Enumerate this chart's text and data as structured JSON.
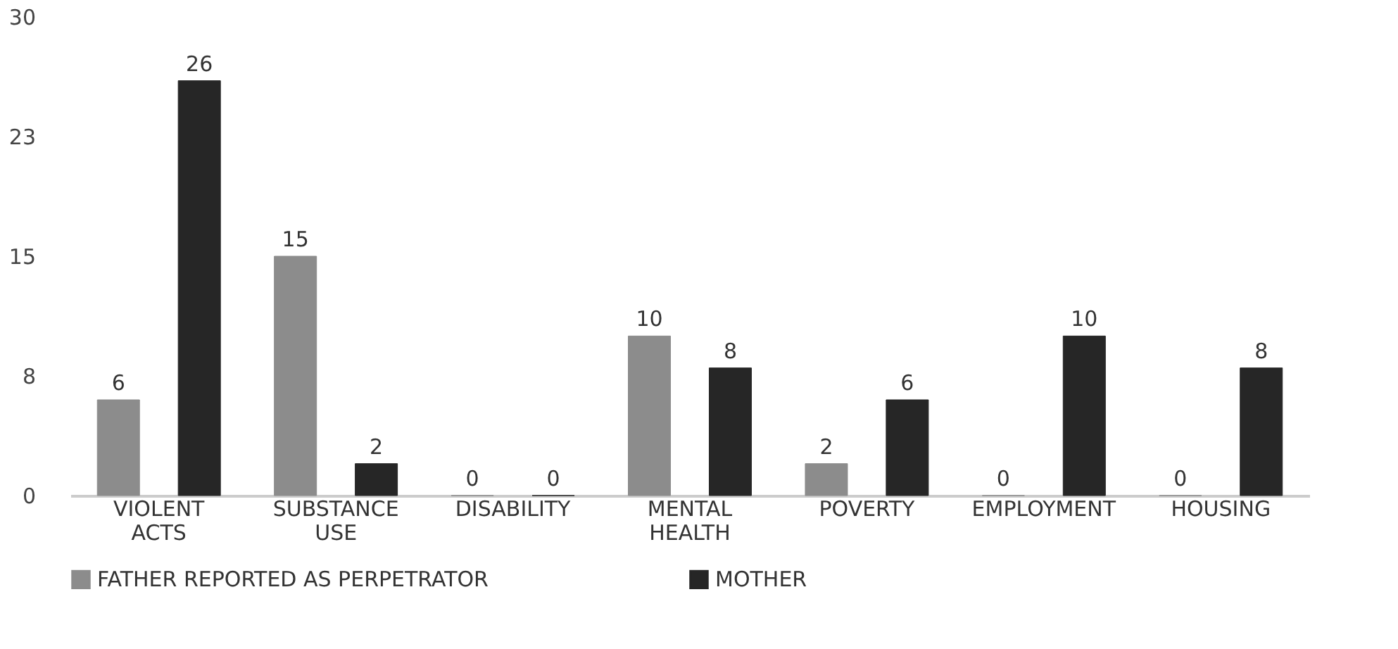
{
  "chart_data": {
    "type": "bar",
    "categories": [
      "VIOLENT ACTS",
      "SUBSTANCE USE",
      "DISABILITY",
      "MENTAL HEALTH",
      "POVERTY",
      "EMPLOYMENT",
      "HOUSING"
    ],
    "series": [
      {
        "name": "FATHER REPORTED AS PERPETRATOR",
        "color": "#8c8c8c",
        "values": [
          6,
          15,
          0,
          10,
          2,
          0,
          0
        ]
      },
      {
        "name": "MOTHER",
        "color": "#262626",
        "values": [
          26,
          2,
          0,
          8,
          6,
          10,
          8
        ]
      }
    ],
    "ylim": [
      0,
      30
    ],
    "yticks": [
      0,
      {
        "value": 7.5,
        "label": "8"
      },
      15,
      {
        "value": 22.5,
        "label": "23"
      },
      30
    ],
    "data_labels": true,
    "legend": "bottom",
    "grid": false
  }
}
